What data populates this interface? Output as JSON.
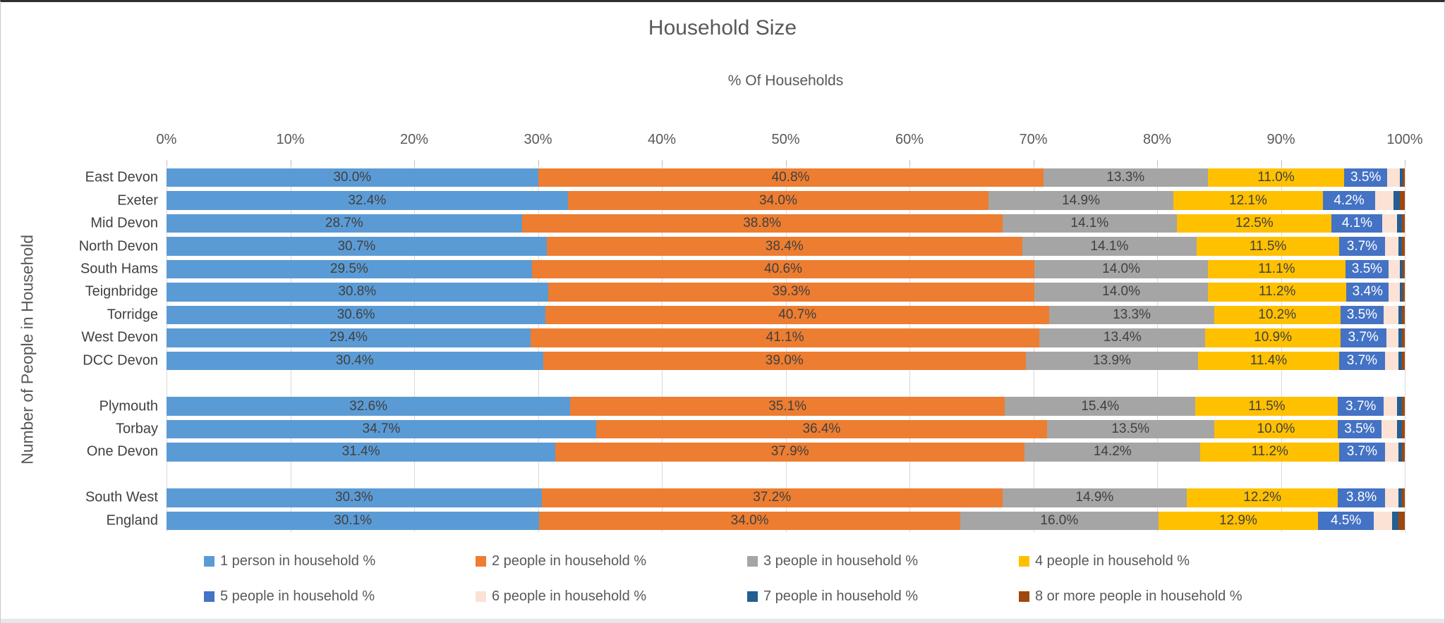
{
  "page": {
    "background": "#FFFFFF"
  },
  "chart_data": {
    "type": "bar",
    "stacked": true,
    "orientation": "horizontal",
    "title": "Household Size",
    "axis_title_x": "% Of Households",
    "axis_title_y": "Number of People in Household",
    "xlim": [
      0,
      100
    ],
    "grid": true,
    "legend_position": "bottom",
    "x_tick_labels": [
      "0%",
      "10%",
      "20%",
      "30%",
      "40%",
      "50%",
      "60%",
      "70%",
      "80%",
      "90%",
      "100%"
    ],
    "categories": [
      "East Devon",
      "Exeter",
      "Mid Devon",
      "North Devon",
      "South Hams",
      "Teignbridge",
      "Torridge",
      "West Devon",
      "DCC Devon",
      "Plymouth",
      "Torbay",
      "One Devon",
      "South West",
      "England"
    ],
    "gap_after_indices": [
      8,
      11
    ],
    "data_label_min_value": 3,
    "series": [
      {
        "name": "1 person in household %",
        "color": "#5B9BD5",
        "label_color": "#404040",
        "values": [
          30.0,
          32.4,
          28.7,
          30.7,
          29.5,
          30.8,
          30.6,
          29.4,
          30.4,
          32.6,
          34.7,
          31.4,
          30.3,
          30.1
        ]
      },
      {
        "name": "2 people in household %",
        "color": "#ED7D31",
        "label_color": "#404040",
        "values": [
          40.8,
          34.0,
          38.8,
          38.4,
          40.6,
          39.3,
          40.7,
          41.1,
          39.0,
          35.1,
          36.4,
          37.9,
          37.2,
          34.0
        ]
      },
      {
        "name": "3 people in household %",
        "color": "#A5A5A5",
        "label_color": "#404040",
        "values": [
          13.3,
          14.9,
          14.1,
          14.1,
          14.0,
          14.0,
          13.3,
          13.4,
          13.9,
          15.4,
          13.5,
          14.2,
          14.9,
          16.0
        ]
      },
      {
        "name": "4 people in household %",
        "color": "#FFC000",
        "label_color": "#404040",
        "values": [
          11.0,
          12.1,
          12.5,
          11.5,
          11.1,
          11.2,
          10.2,
          10.9,
          11.4,
          11.5,
          10.0,
          11.2,
          12.2,
          12.9
        ]
      },
      {
        "name": "5 people in household %",
        "color": "#4472C4",
        "label_color": "#FFFFFF",
        "values": [
          3.5,
          4.2,
          4.1,
          3.7,
          3.5,
          3.4,
          3.5,
          3.7,
          3.7,
          3.7,
          3.5,
          3.7,
          3.8,
          4.5
        ]
      },
      {
        "name": "6 people in household %",
        "color": "#FBE2D5",
        "label_color": "#404040",
        "values": [
          1.0,
          1.5,
          1.2,
          1.1,
          0.9,
          0.9,
          1.2,
          1.0,
          1.1,
          1.1,
          1.3,
          1.1,
          1.1,
          1.5
        ]
      },
      {
        "name": "7 people in household %",
        "color": "#255E91",
        "label_color": "#FFFFFF",
        "values": [
          0.25,
          0.5,
          0.35,
          0.3,
          0.25,
          0.25,
          0.3,
          0.3,
          0.3,
          0.4,
          0.4,
          0.3,
          0.3,
          0.5
        ]
      },
      {
        "name": "8 or more people in household %",
        "color": "#9E480E",
        "label_color": "#FFFFFF",
        "values": [
          0.15,
          0.4,
          0.25,
          0.2,
          0.15,
          0.15,
          0.2,
          0.2,
          0.2,
          0.2,
          0.2,
          0.2,
          0.2,
          0.5
        ]
      }
    ]
  }
}
